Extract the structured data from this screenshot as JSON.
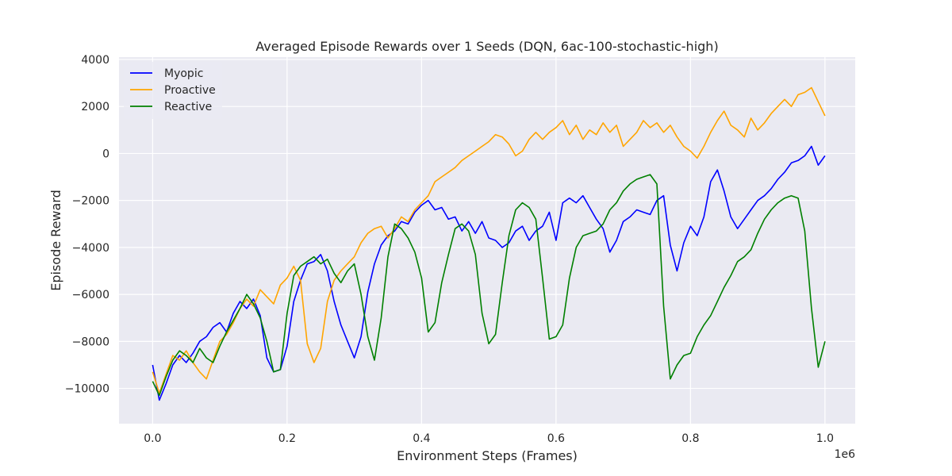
{
  "chart_data": {
    "type": "line",
    "title": "Averaged Episode Rewards over 1 Seeds (DQN, 6ac-100-stochastic-high)",
    "xlabel": "Environment Steps (Frames)",
    "ylabel": "Episode Reward",
    "x_offset_label": "1e6",
    "xlim": [
      -0.05,
      1.045
    ],
    "ylim": [
      -11500,
      4100
    ],
    "xticks": [
      0.0,
      0.2,
      0.4,
      0.6,
      0.8,
      1.0
    ],
    "xtick_labels": [
      "0.0",
      "0.2",
      "0.4",
      "0.6",
      "0.8",
      "1.0"
    ],
    "yticks": [
      -10000,
      -8000,
      -6000,
      -4000,
      -2000,
      0,
      2000,
      4000
    ],
    "ytick_labels": [
      "−10000",
      "−8000",
      "−6000",
      "−4000",
      "−2000",
      "0",
      "2000",
      "4000"
    ],
    "grid": true,
    "legend_position": "top-left",
    "series": [
      {
        "name": "Myopic",
        "color": "#0000ff",
        "points": [
          [
            0.0,
            -9000
          ],
          [
            0.01,
            -10500
          ],
          [
            0.02,
            -9800
          ],
          [
            0.03,
            -9000
          ],
          [
            0.04,
            -8600
          ],
          [
            0.05,
            -8900
          ],
          [
            0.06,
            -8500
          ],
          [
            0.07,
            -8000
          ],
          [
            0.08,
            -7800
          ],
          [
            0.09,
            -7400
          ],
          [
            0.1,
            -7200
          ],
          [
            0.11,
            -7600
          ],
          [
            0.12,
            -6800
          ],
          [
            0.13,
            -6300
          ],
          [
            0.14,
            -6600
          ],
          [
            0.15,
            -6200
          ],
          [
            0.16,
            -6900
          ],
          [
            0.17,
            -8700
          ],
          [
            0.18,
            -9300
          ],
          [
            0.19,
            -9200
          ],
          [
            0.2,
            -8200
          ],
          [
            0.21,
            -6300
          ],
          [
            0.22,
            -5400
          ],
          [
            0.23,
            -4700
          ],
          [
            0.24,
            -4600
          ],
          [
            0.25,
            -4300
          ],
          [
            0.26,
            -5000
          ],
          [
            0.27,
            -6300
          ],
          [
            0.28,
            -7300
          ],
          [
            0.29,
            -8000
          ],
          [
            0.3,
            -8700
          ],
          [
            0.31,
            -7800
          ],
          [
            0.32,
            -5900
          ],
          [
            0.33,
            -4700
          ],
          [
            0.34,
            -3900
          ],
          [
            0.35,
            -3500
          ],
          [
            0.36,
            -3300
          ],
          [
            0.37,
            -2900
          ],
          [
            0.38,
            -3000
          ],
          [
            0.39,
            -2500
          ],
          [
            0.4,
            -2200
          ],
          [
            0.41,
            -2000
          ],
          [
            0.42,
            -2400
          ],
          [
            0.43,
            -2300
          ],
          [
            0.44,
            -2800
          ],
          [
            0.45,
            -2700
          ],
          [
            0.46,
            -3300
          ],
          [
            0.47,
            -2900
          ],
          [
            0.48,
            -3400
          ],
          [
            0.49,
            -2900
          ],
          [
            0.5,
            -3600
          ],
          [
            0.51,
            -3700
          ],
          [
            0.52,
            -4000
          ],
          [
            0.53,
            -3800
          ],
          [
            0.54,
            -3300
          ],
          [
            0.55,
            -3100
          ],
          [
            0.56,
            -3700
          ],
          [
            0.57,
            -3300
          ],
          [
            0.58,
            -3100
          ],
          [
            0.59,
            -2500
          ],
          [
            0.6,
            -3700
          ],
          [
            0.61,
            -2100
          ],
          [
            0.62,
            -1900
          ],
          [
            0.63,
            -2100
          ],
          [
            0.64,
            -1800
          ],
          [
            0.65,
            -2300
          ],
          [
            0.66,
            -2800
          ],
          [
            0.67,
            -3200
          ],
          [
            0.68,
            -4200
          ],
          [
            0.69,
            -3700
          ],
          [
            0.7,
            -2900
          ],
          [
            0.71,
            -2700
          ],
          [
            0.72,
            -2400
          ],
          [
            0.73,
            -2500
          ],
          [
            0.74,
            -2600
          ],
          [
            0.75,
            -2000
          ],
          [
            0.76,
            -1800
          ],
          [
            0.77,
            -3900
          ],
          [
            0.78,
            -5000
          ],
          [
            0.79,
            -3800
          ],
          [
            0.8,
            -3100
          ],
          [
            0.81,
            -3500
          ],
          [
            0.82,
            -2700
          ],
          [
            0.83,
            -1200
          ],
          [
            0.84,
            -700
          ],
          [
            0.85,
            -1600
          ],
          [
            0.86,
            -2700
          ],
          [
            0.87,
            -3200
          ],
          [
            0.88,
            -2800
          ],
          [
            0.89,
            -2400
          ],
          [
            0.9,
            -2000
          ],
          [
            0.91,
            -1800
          ],
          [
            0.92,
            -1500
          ],
          [
            0.93,
            -1100
          ],
          [
            0.94,
            -800
          ],
          [
            0.95,
            -400
          ],
          [
            0.96,
            -300
          ],
          [
            0.97,
            -100
          ],
          [
            0.98,
            300
          ],
          [
            0.99,
            -500
          ],
          [
            1.0,
            -100
          ]
        ]
      },
      {
        "name": "Proactive",
        "color": "#ffa500",
        "points": [
          [
            0.0,
            -9300
          ],
          [
            0.01,
            -10200
          ],
          [
            0.02,
            -9400
          ],
          [
            0.03,
            -8600
          ],
          [
            0.04,
            -8800
          ],
          [
            0.05,
            -8400
          ],
          [
            0.06,
            -8900
          ],
          [
            0.07,
            -9300
          ],
          [
            0.08,
            -9600
          ],
          [
            0.09,
            -8800
          ],
          [
            0.1,
            -8000
          ],
          [
            0.11,
            -7700
          ],
          [
            0.12,
            -7200
          ],
          [
            0.13,
            -6600
          ],
          [
            0.14,
            -6200
          ],
          [
            0.15,
            -6500
          ],
          [
            0.16,
            -5800
          ],
          [
            0.17,
            -6100
          ],
          [
            0.18,
            -6400
          ],
          [
            0.19,
            -5600
          ],
          [
            0.2,
            -5300
          ],
          [
            0.21,
            -4800
          ],
          [
            0.22,
            -5400
          ],
          [
            0.23,
            -8100
          ],
          [
            0.24,
            -8900
          ],
          [
            0.25,
            -8300
          ],
          [
            0.26,
            -6300
          ],
          [
            0.27,
            -5400
          ],
          [
            0.28,
            -5000
          ],
          [
            0.29,
            -4700
          ],
          [
            0.3,
            -4400
          ],
          [
            0.31,
            -3800
          ],
          [
            0.32,
            -3400
          ],
          [
            0.33,
            -3200
          ],
          [
            0.34,
            -3100
          ],
          [
            0.35,
            -3600
          ],
          [
            0.36,
            -3200
          ],
          [
            0.37,
            -2700
          ],
          [
            0.38,
            -2900
          ],
          [
            0.39,
            -2400
          ],
          [
            0.4,
            -2100
          ],
          [
            0.41,
            -1800
          ],
          [
            0.42,
            -1200
          ],
          [
            0.43,
            -1000
          ],
          [
            0.44,
            -800
          ],
          [
            0.45,
            -600
          ],
          [
            0.46,
            -300
          ],
          [
            0.47,
            -100
          ],
          [
            0.48,
            100
          ],
          [
            0.49,
            300
          ],
          [
            0.5,
            500
          ],
          [
            0.51,
            800
          ],
          [
            0.52,
            700
          ],
          [
            0.53,
            400
          ],
          [
            0.54,
            -100
          ],
          [
            0.55,
            100
          ],
          [
            0.56,
            600
          ],
          [
            0.57,
            900
          ],
          [
            0.58,
            600
          ],
          [
            0.59,
            900
          ],
          [
            0.6,
            1100
          ],
          [
            0.61,
            1400
          ],
          [
            0.62,
            800
          ],
          [
            0.63,
            1200
          ],
          [
            0.64,
            600
          ],
          [
            0.65,
            1000
          ],
          [
            0.66,
            800
          ],
          [
            0.67,
            1300
          ],
          [
            0.68,
            900
          ],
          [
            0.69,
            1200
          ],
          [
            0.7,
            300
          ],
          [
            0.71,
            600
          ],
          [
            0.72,
            900
          ],
          [
            0.73,
            1400
          ],
          [
            0.74,
            1100
          ],
          [
            0.75,
            1300
          ],
          [
            0.76,
            900
          ],
          [
            0.77,
            1200
          ],
          [
            0.78,
            700
          ],
          [
            0.79,
            300
          ],
          [
            0.8,
            100
          ],
          [
            0.81,
            -200
          ],
          [
            0.82,
            300
          ],
          [
            0.83,
            900
          ],
          [
            0.84,
            1400
          ],
          [
            0.85,
            1800
          ],
          [
            0.86,
            1200
          ],
          [
            0.87,
            1000
          ],
          [
            0.88,
            700
          ],
          [
            0.89,
            1500
          ],
          [
            0.9,
            1000
          ],
          [
            0.91,
            1300
          ],
          [
            0.92,
            1700
          ],
          [
            0.93,
            2000
          ],
          [
            0.94,
            2300
          ],
          [
            0.95,
            2000
          ],
          [
            0.96,
            2500
          ],
          [
            0.97,
            2600
          ],
          [
            0.98,
            2800
          ],
          [
            0.99,
            2200
          ],
          [
            1.0,
            1600
          ]
        ]
      },
      {
        "name": "Reactive",
        "color": "#008000",
        "points": [
          [
            0.0,
            -9700
          ],
          [
            0.01,
            -10300
          ],
          [
            0.02,
            -9500
          ],
          [
            0.03,
            -8800
          ],
          [
            0.04,
            -8400
          ],
          [
            0.05,
            -8600
          ],
          [
            0.06,
            -8900
          ],
          [
            0.07,
            -8300
          ],
          [
            0.08,
            -8700
          ],
          [
            0.09,
            -8900
          ],
          [
            0.1,
            -8200
          ],
          [
            0.11,
            -7600
          ],
          [
            0.12,
            -7100
          ],
          [
            0.13,
            -6600
          ],
          [
            0.14,
            -6000
          ],
          [
            0.15,
            -6400
          ],
          [
            0.16,
            -7000
          ],
          [
            0.17,
            -8000
          ],
          [
            0.18,
            -9300
          ],
          [
            0.19,
            -9200
          ],
          [
            0.2,
            -6800
          ],
          [
            0.21,
            -5200
          ],
          [
            0.22,
            -4800
          ],
          [
            0.23,
            -4600
          ],
          [
            0.24,
            -4400
          ],
          [
            0.25,
            -4700
          ],
          [
            0.26,
            -4500
          ],
          [
            0.27,
            -5100
          ],
          [
            0.28,
            -5500
          ],
          [
            0.29,
            -5000
          ],
          [
            0.3,
            -4700
          ],
          [
            0.31,
            -6000
          ],
          [
            0.32,
            -7800
          ],
          [
            0.33,
            -8800
          ],
          [
            0.34,
            -7000
          ],
          [
            0.35,
            -4400
          ],
          [
            0.36,
            -3000
          ],
          [
            0.37,
            -3200
          ],
          [
            0.38,
            -3600
          ],
          [
            0.39,
            -4200
          ],
          [
            0.4,
            -5300
          ],
          [
            0.41,
            -7600
          ],
          [
            0.42,
            -7200
          ],
          [
            0.43,
            -5500
          ],
          [
            0.44,
            -4300
          ],
          [
            0.45,
            -3200
          ],
          [
            0.46,
            -3000
          ],
          [
            0.47,
            -3300
          ],
          [
            0.48,
            -4300
          ],
          [
            0.49,
            -6800
          ],
          [
            0.5,
            -8100
          ],
          [
            0.51,
            -7700
          ],
          [
            0.52,
            -5500
          ],
          [
            0.53,
            -3500
          ],
          [
            0.54,
            -2400
          ],
          [
            0.55,
            -2100
          ],
          [
            0.56,
            -2300
          ],
          [
            0.57,
            -2800
          ],
          [
            0.58,
            -5300
          ],
          [
            0.59,
            -7900
          ],
          [
            0.6,
            -7800
          ],
          [
            0.61,
            -7300
          ],
          [
            0.62,
            -5300
          ],
          [
            0.63,
            -4000
          ],
          [
            0.64,
            -3500
          ],
          [
            0.65,
            -3400
          ],
          [
            0.66,
            -3300
          ],
          [
            0.67,
            -3000
          ],
          [
            0.68,
            -2400
          ],
          [
            0.69,
            -2100
          ],
          [
            0.7,
            -1600
          ],
          [
            0.71,
            -1300
          ],
          [
            0.72,
            -1100
          ],
          [
            0.73,
            -1000
          ],
          [
            0.74,
            -900
          ],
          [
            0.75,
            -1300
          ],
          [
            0.76,
            -6500
          ],
          [
            0.77,
            -9600
          ],
          [
            0.78,
            -9000
          ],
          [
            0.79,
            -8600
          ],
          [
            0.8,
            -8500
          ],
          [
            0.81,
            -7800
          ],
          [
            0.82,
            -7300
          ],
          [
            0.83,
            -6900
          ],
          [
            0.84,
            -6300
          ],
          [
            0.85,
            -5700
          ],
          [
            0.86,
            -5200
          ],
          [
            0.87,
            -4600
          ],
          [
            0.88,
            -4400
          ],
          [
            0.89,
            -4100
          ],
          [
            0.9,
            -3400
          ],
          [
            0.91,
            -2800
          ],
          [
            0.92,
            -2400
          ],
          [
            0.93,
            -2100
          ],
          [
            0.94,
            -1900
          ],
          [
            0.95,
            -1800
          ],
          [
            0.96,
            -1900
          ],
          [
            0.97,
            -3300
          ],
          [
            0.98,
            -6600
          ],
          [
            0.99,
            -9100
          ],
          [
            1.0,
            -8000
          ]
        ]
      }
    ]
  }
}
